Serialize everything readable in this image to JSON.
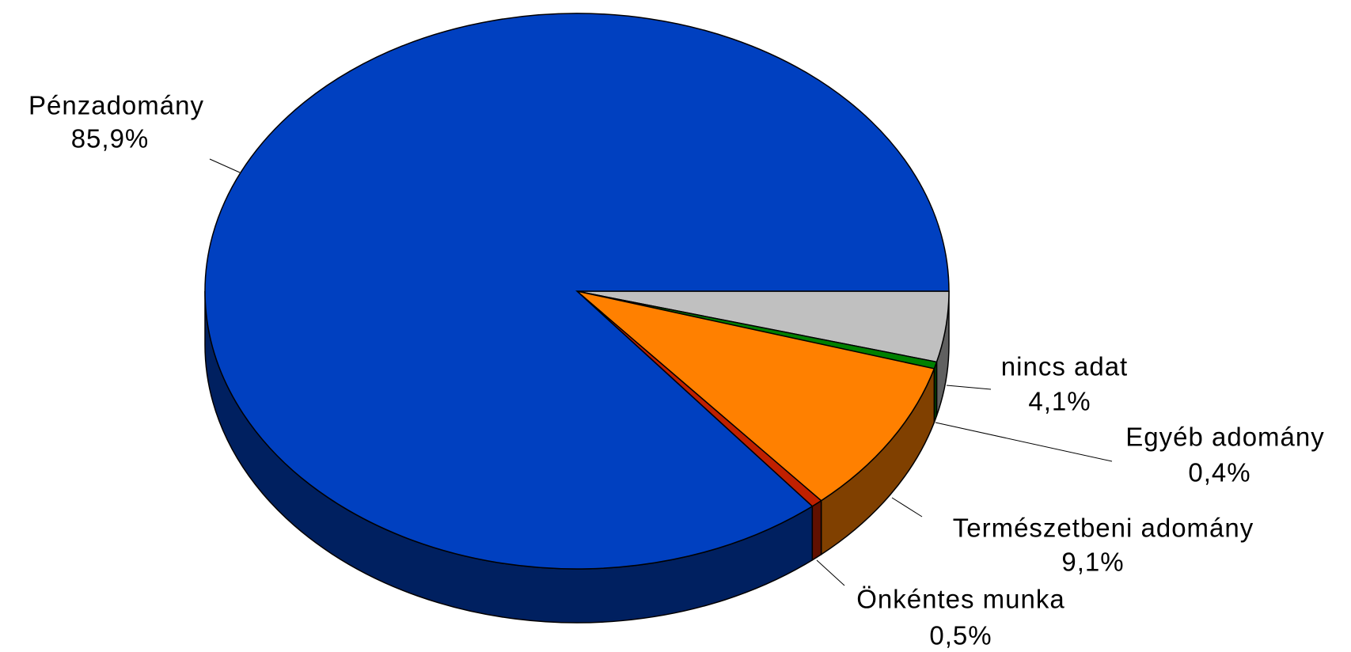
{
  "chart_data": {
    "type": "pie",
    "categories": [
      "nincs adat",
      "Egyéb adomány",
      "Természetbeni adomány",
      "Önkéntes munka",
      "Pénzadomány"
    ],
    "values": [
      4.1,
      0.4,
      9.1,
      0.5,
      85.9
    ],
    "value_labels": [
      "4,1%",
      "0,4%",
      "9,1%",
      "0,5%",
      "85,9%"
    ],
    "colors": [
      "#c0c0c0",
      "#008000",
      "#ff8000",
      "#c02000",
      "#0040c0"
    ]
  }
}
